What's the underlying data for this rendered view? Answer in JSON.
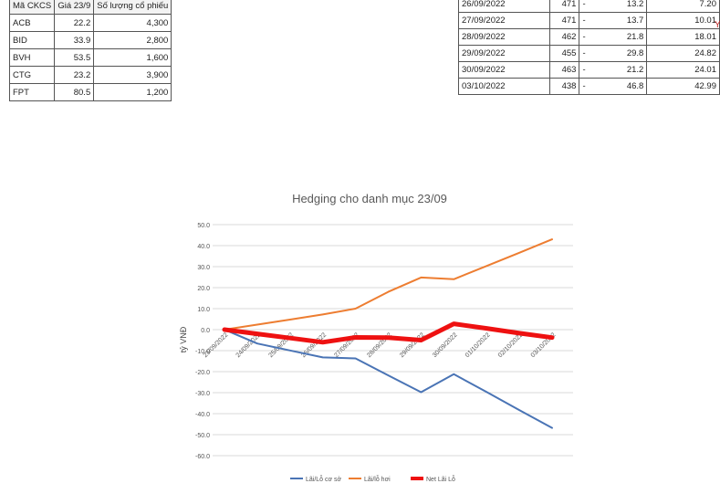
{
  "left_table": {
    "headers": [
      "Mã CKCS",
      "Giá 23/9",
      "Số lượng cổ phiếu"
    ],
    "rows": [
      [
        "ACB",
        "22.2",
        "4,300"
      ],
      [
        "BID",
        "33.9",
        "2,800"
      ],
      [
        "BVH",
        "53.5",
        "1,600"
      ],
      [
        "CTG",
        "23.2",
        "3,900"
      ],
      [
        "FPT",
        "80.5",
        "1,200"
      ]
    ]
  },
  "right_table": {
    "rows": [
      [
        "26/09/2022",
        "471",
        "-",
        "13.2",
        "7.20"
      ],
      [
        "27/09/2022",
        "471",
        "-",
        "13.7",
        "10.01"
      ],
      [
        "28/09/2022",
        "462",
        "-",
        "21.8",
        "18.01"
      ],
      [
        "29/09/2022",
        "455",
        "-",
        "29.8",
        "24.82"
      ],
      [
        "30/09/2022",
        "463",
        "-",
        "21.2",
        "24.01"
      ],
      [
        "03/10/2022",
        "438",
        "-",
        "46.8",
        "42.99"
      ]
    ]
  },
  "side_mark": "Y",
  "chart_data": {
    "type": "line",
    "title": "Hedging cho danh mục 23/09",
    "ylabel": "tỷ VNĐ",
    "xlabel": "",
    "ylim": [
      -60,
      50
    ],
    "yticks": [
      "50.0",
      "40.0",
      "30.0",
      "20.0",
      "10.0",
      "0.0",
      "-10.0",
      "-20.0",
      "-30.0",
      "-40.0",
      "-50.0",
      "-60.0"
    ],
    "categories": [
      "23/09/2022",
      "24/09/2022",
      "25/09/2022",
      "26/09/2022",
      "27/09/2022",
      "28/09/2022",
      "29/09/2022",
      "30/09/2022",
      "01/10/2022",
      "02/10/2022",
      "03/10/2022"
    ],
    "grid": true,
    "legend_position": "bottom",
    "series": [
      {
        "name": "Lãi/Lỗ cơ sở",
        "color": "#4a74b5",
        "width": 2,
        "values": [
          0,
          -6.6,
          -9.9,
          -13.2,
          -13.7,
          -21.8,
          -29.8,
          -21.2,
          -29.7,
          -38.3,
          -46.8
        ]
      },
      {
        "name": "Lãi/lỗ hơi",
        "color": "#ed7d31",
        "width": 2,
        "values": [
          0,
          2.4,
          4.8,
          7.2,
          10.01,
          18.01,
          24.82,
          24.01,
          30.3,
          36.6,
          42.99
        ]
      },
      {
        "name": "Net Lãi Lỗ",
        "color": "#ee1111",
        "width": 5,
        "values": [
          0,
          -2.0,
          -4.0,
          -6.0,
          -3.7,
          -3.8,
          -5.0,
          2.8,
          0.6,
          -1.7,
          -3.8
        ]
      }
    ]
  }
}
